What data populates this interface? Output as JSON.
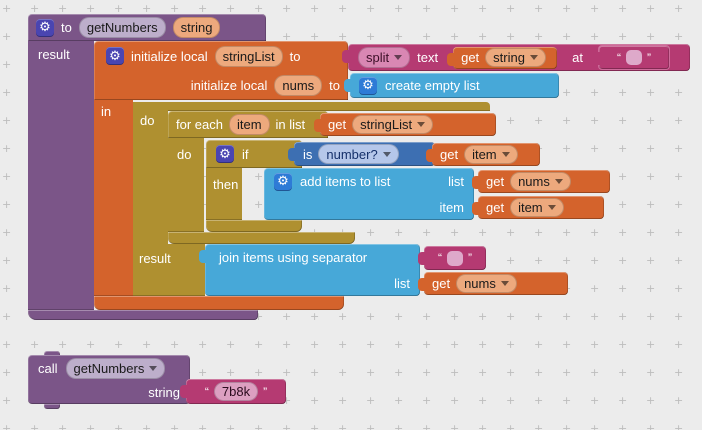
{
  "ui": {
    "gear": "⚙",
    "grid_mark": "+",
    "open_quote": "“",
    "close_quote": "”"
  },
  "colors": {
    "canvas_bg": "#ECECEC",
    "grid": "#BDBDBD",
    "procedure_purple": "#7B5588",
    "variable_orange": "#D4632C",
    "control_gold": "#AF9030",
    "text_magenta": "#B53A72",
    "list_blue": "#47A8D8",
    "math_blue": "#3D6FB2"
  },
  "procedure_block": {
    "to": "to",
    "name": "getNumbers",
    "param": "string",
    "result": "result"
  },
  "init_block": {
    "init1": "initialize local",
    "var1": "stringList",
    "to1": "to",
    "init2": "initialize local",
    "var2": "nums",
    "to2": "to",
    "in": "in"
  },
  "split_block": {
    "op": "split",
    "text": "text",
    "at": "at"
  },
  "get_string_block": {
    "get": "get",
    "var": "string"
  },
  "create_list_block": {
    "label": "create empty list"
  },
  "do_block": {
    "do": "do",
    "result": "result"
  },
  "foreach_block": {
    "for_each": "for each",
    "var": "item",
    "in_list": "in list",
    "do": "do"
  },
  "get_stringlist_block": {
    "get": "get",
    "var": "stringList"
  },
  "if_block": {
    "if": "if",
    "then": "then"
  },
  "is_number_block": {
    "is": "is",
    "option": "number?"
  },
  "get_item_block1": {
    "get": "get",
    "var": "item"
  },
  "add_items_block": {
    "label": "add items to list",
    "list": "list",
    "item": "item"
  },
  "get_nums_block1": {
    "get": "get",
    "var": "nums"
  },
  "get_item_block2": {
    "get": "get",
    "var": "item"
  },
  "join_block": {
    "label": "join items using separator",
    "list": "list"
  },
  "get_nums_block2": {
    "get": "get",
    "var": "nums"
  },
  "call_block": {
    "call": "call",
    "name": "getNumbers",
    "param": "string",
    "arg_value": "7b8k"
  }
}
